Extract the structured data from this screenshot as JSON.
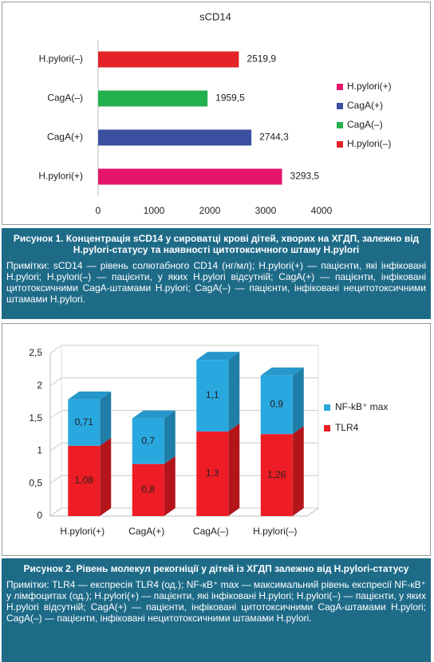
{
  "chart_data": [
    {
      "type": "bar",
      "orientation": "horizontal",
      "title": "sCD14",
      "categories": [
        "H.pylori(–)",
        "CagA(–)",
        "CagA(+)",
        "H.pylori(+)"
      ],
      "values": [
        2519.9,
        1959.5,
        2744.3,
        3293.5
      ],
      "value_labels": [
        "2519,9",
        "1959,5",
        "2744,3",
        "3293,5"
      ],
      "colors": [
        "#e42328",
        "#23b14d",
        "#3b4fa0",
        "#e5176d"
      ],
      "xlim": [
        0,
        4000
      ],
      "xticks": [
        0,
        1000,
        2000,
        3000,
        4000
      ],
      "grid": false,
      "legend": "right"
    },
    {
      "type": "bar",
      "orientation": "vertical",
      "stacked": true,
      "three_d": true,
      "categories": [
        "H.pylori(+)",
        "CagA(+)",
        "CagA(–)",
        "H.pylori(–)"
      ],
      "series": [
        {
          "name": "TLR4",
          "color": "#ee1c24",
          "values": [
            1.08,
            0.8,
            1.3,
            1.26
          ],
          "value_labels": [
            "1,08",
            "0,8",
            "1,3",
            "1,26"
          ]
        },
        {
          "name": "NF-kB⁺ max",
          "color": "#29a8e0",
          "values": [
            0.71,
            0.7,
            1.1,
            0.9
          ],
          "value_labels": [
            "0,71",
            "0,7",
            "1,1",
            "0,9"
          ]
        }
      ],
      "ylim": [
        0,
        2.5
      ],
      "yticks": [
        0,
        {
          "value": 0.5,
          "label": "0,5"
        },
        1,
        {
          "value": 1.5,
          "label": "1,5"
        },
        2,
        {
          "value": 2.5,
          "label": "2,5"
        }
      ],
      "grid": true,
      "legend": "right"
    }
  ],
  "figure1": {
    "caption": "Рисунок 1. Концентрація sCD14 у сироватці крові дітей, хворих на ХГДП, залежно від H.pylori-статусу та наявності цитотоксичного штаму H.pylori",
    "notes": "Примітки: sCD14 — рівень солютабного CD14 (нг/мл); H.pylori(+) — пацієнти, які інфіковані H.pylori; H.pylori(–) — пацієнти, у яких H.pylori відсутній; CagA(+) — пацієнти, інфіковані цитотоксичними CagA-штамами H.pylori; CagA(–) — пацієнти, інфіковані нецитотоксичними штамами H.pylori."
  },
  "figure2": {
    "caption": "Рисунок 2. Рівень молекул рекогніції у дітей із ХГДП залежно від H.pylori-статусу",
    "notes": "Примітки: TLR4 — експресія TLR4 (од.); NF-кB⁺ max — максимальний рівень експресії NF-кB⁺ у лімфоцитах (од.); H.pylori(+) — пацієнти, які інфіковані H.pylori; H.pylori(–) — пацієнти, у яких H.pylori відсутній; CagA(+) — пацієнти, інфіковані цитотоксичними CagA-штамами H.pylori; CagA(–) — пацієнти, інфіковані нецитотоксичними штамами H.pylori."
  }
}
